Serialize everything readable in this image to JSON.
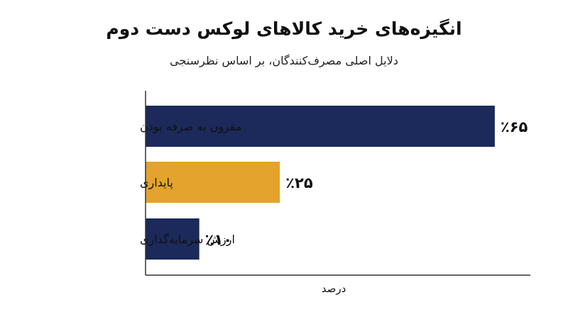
{
  "title": "انگیزه‌های خرید کالاهای لوکس دست دوم",
  "subtitle": "دلایل اصلی مصرف‌کنندگان، بر اساس نظرسنجی",
  "colors": {
    "primary": "#1b2a5a",
    "accent": "#e3a32c",
    "axis": "#333333"
  },
  "chart_data": {
    "type": "bar",
    "orientation": "horizontal",
    "categories": [
      "مقرون به صرفه بودن",
      "پایداری",
      "ارزش سرمایه‌گذاری"
    ],
    "values": [
      65,
      25,
      10
    ],
    "data_labels": [
      "٪۶۵",
      "٪۲۵",
      "٪۱۰"
    ],
    "bar_colors": [
      "#1b2a5a",
      "#e3a32c",
      "#1b2a5a"
    ],
    "xlabel": "درصد",
    "ylabel": "",
    "xlim": [
      0,
      74
    ],
    "grid": false,
    "legend": "none"
  }
}
